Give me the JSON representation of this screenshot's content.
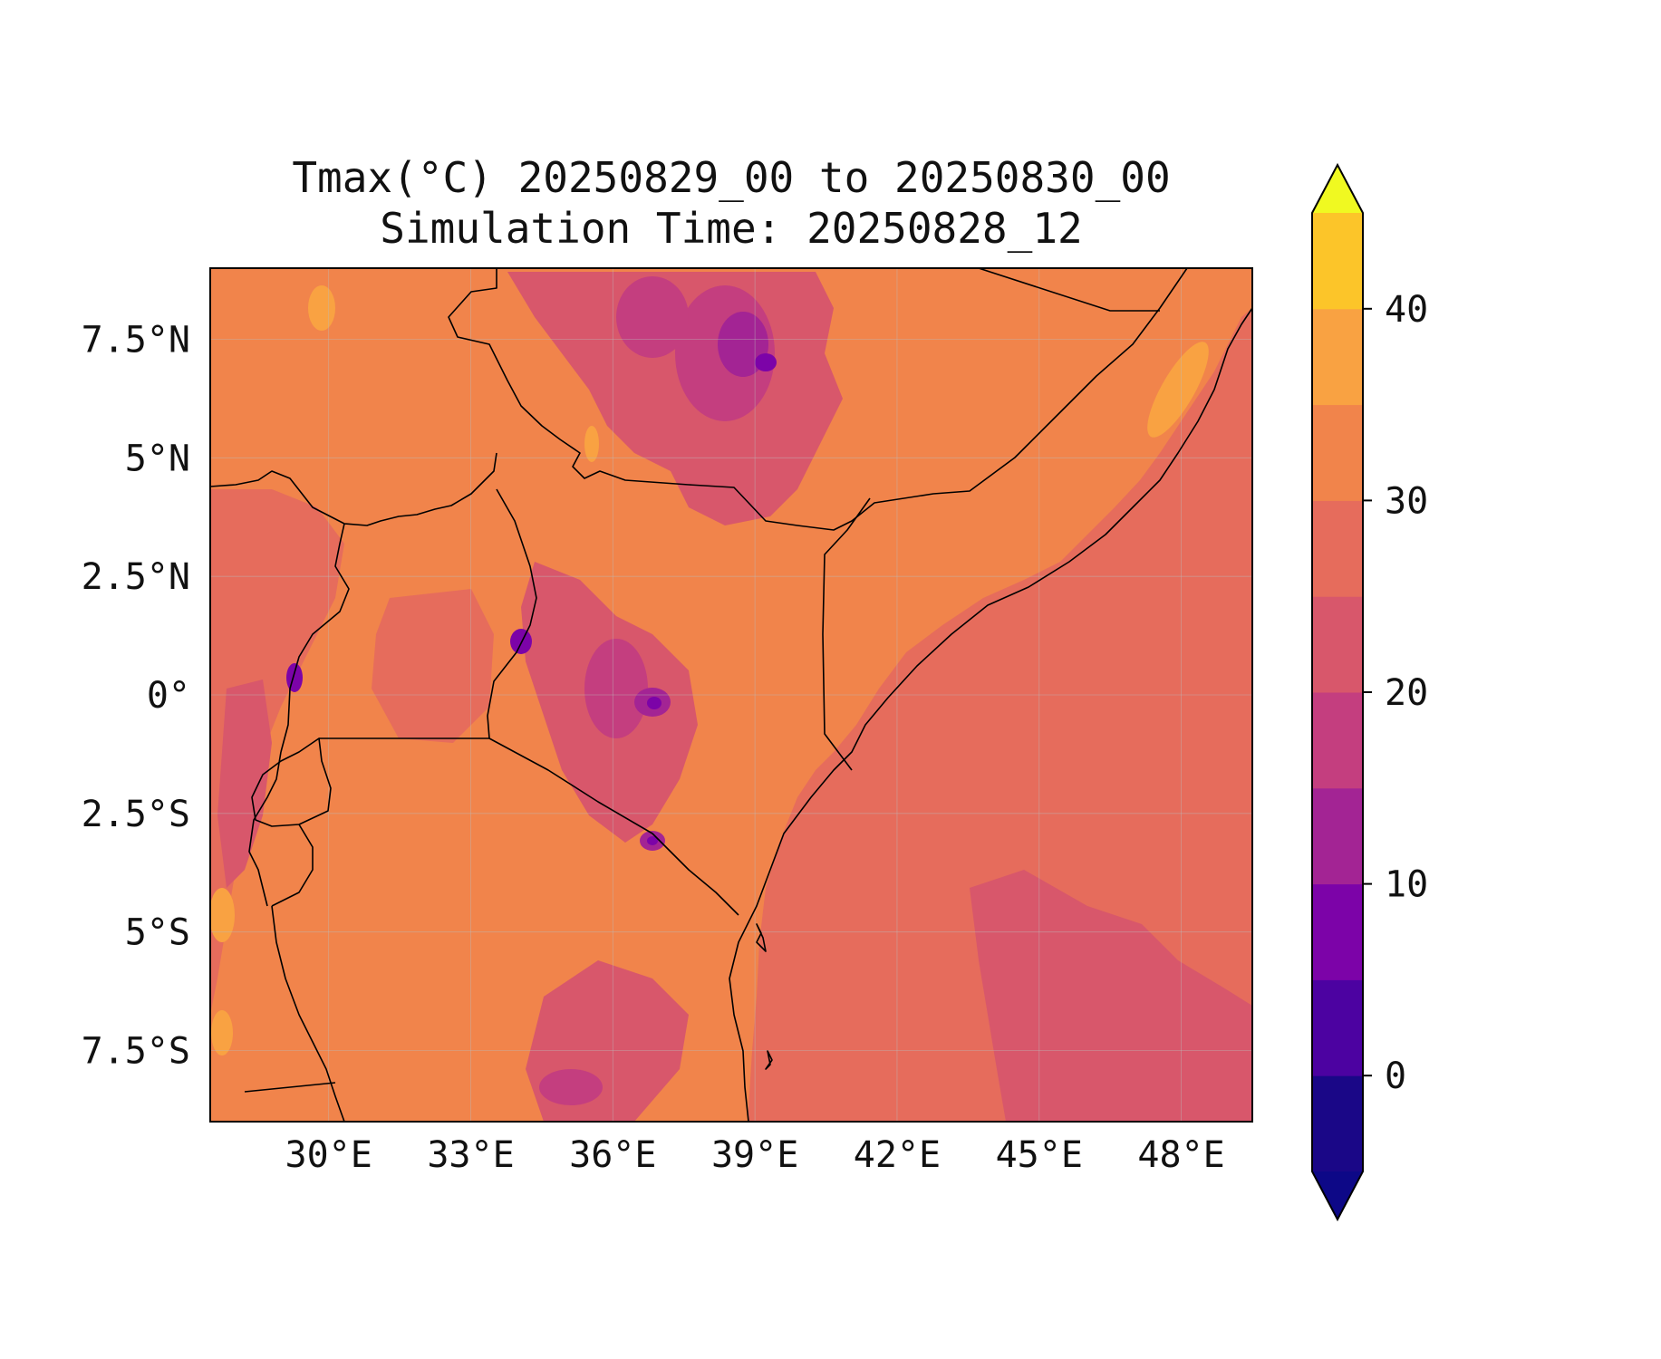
{
  "title_line1": "Tmax(°C) 20250829_00 to 20250830_00",
  "title_line2": "Simulation Time: 20250828_12",
  "map": {
    "lon_range": [
      27.5,
      49.5
    ],
    "lat_range": [
      -9,
      9
    ],
    "x_ticks": [
      "30°E",
      "33°E",
      "36°E",
      "39°E",
      "42°E",
      "45°E",
      "48°E"
    ],
    "x_tick_values": [
      30,
      33,
      36,
      39,
      42,
      45,
      48
    ],
    "y_ticks": [
      "7.5°N",
      "5°N",
      "2.5°N",
      "0°",
      "2.5°S",
      "5°S",
      "7.5°S"
    ],
    "y_tick_values": [
      7.5,
      5,
      2.5,
      0,
      -2.5,
      -5,
      -7.5
    ],
    "gridlines": true
  },
  "colorbar": {
    "levels": [
      -5,
      0,
      5,
      10,
      15,
      20,
      25,
      30,
      35,
      40,
      45
    ],
    "colors": [
      "#1a0787",
      "#4c02a1",
      "#7c03a8",
      "#a32494",
      "#c43e7f",
      "#d8576b",
      "#e66c5c",
      "#f1844b",
      "#f9a242",
      "#fcc529",
      "#f0f921"
    ],
    "extend_low_color": "#0d0887",
    "extend_high_color": "#f0f921",
    "tick_labels": [
      "0",
      "10",
      "20",
      "30",
      "40"
    ],
    "tick_values": [
      0,
      10,
      20,
      30,
      40
    ],
    "extend": "both"
  }
}
